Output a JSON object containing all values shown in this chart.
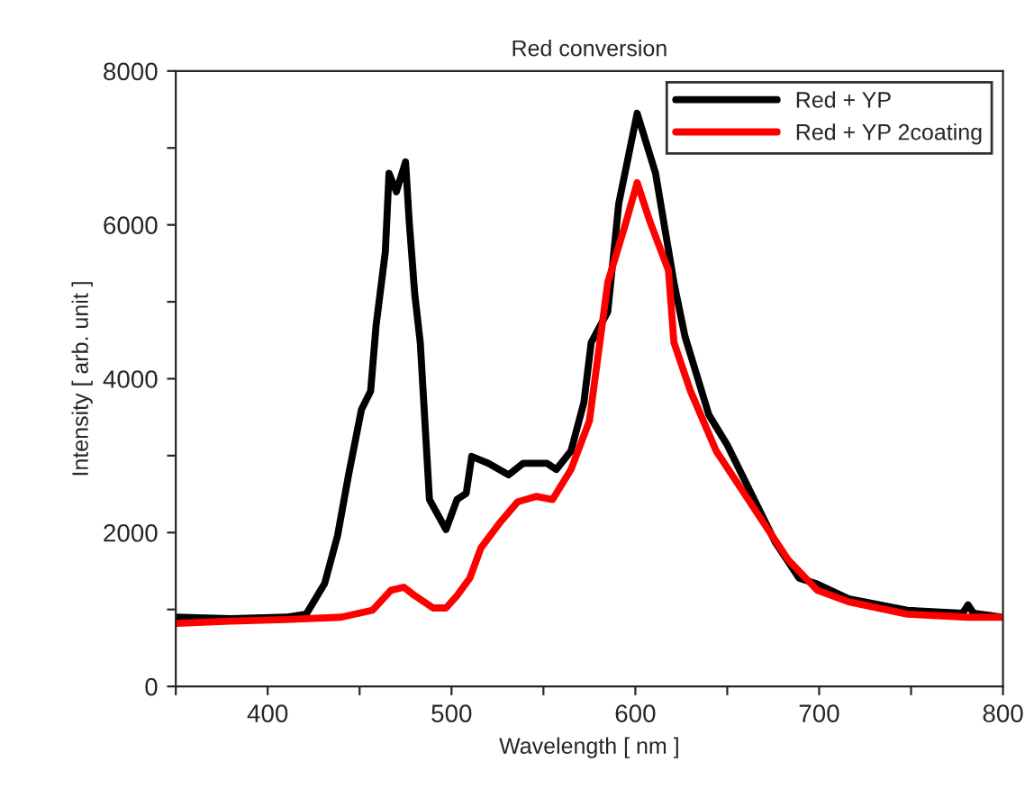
{
  "chart_data": {
    "type": "line",
    "title": "Red conversion",
    "xlabel": "Wavelength [ nm ]",
    "ylabel": "Intensity [ arb. unit ]",
    "xlim": [
      350,
      800
    ],
    "ylim": [
      0,
      8000
    ],
    "xticks": [
      {
        "value": 350,
        "label": null
      },
      400,
      {
        "value": 450,
        "label": null
      },
      500,
      {
        "value": 550,
        "label": null
      },
      600,
      {
        "value": 650,
        "label": null
      },
      700,
      {
        "value": 750,
        "label": null
      },
      800
    ],
    "yticks": [
      0,
      {
        "value": 1000,
        "label": null
      },
      2000,
      {
        "value": 3000,
        "label": null
      },
      4000,
      {
        "value": 5000,
        "label": null
      },
      6000,
      {
        "value": 7000,
        "label": null
      },
      8000
    ],
    "grid": false,
    "legend": "top right",
    "line_style": "solid",
    "marker": "none",
    "series": [
      {
        "name": "Red + YP",
        "color": "#000000",
        "x": [
          350,
          380,
          410,
          421,
          431,
          438,
          444,
          451,
          456,
          459,
          464,
          466,
          470,
          475,
          477,
          480,
          483,
          488,
          497,
          503,
          508,
          511,
          520,
          531,
          539,
          552,
          557,
          565,
          572,
          576,
          585,
          591,
          601,
          611,
          621,
          627,
          640,
          650,
          663,
          676,
          689,
          699,
          716,
          748,
          778,
          781,
          784,
          800
        ],
        "values": [
          900,
          880,
          900,
          940,
          1340,
          1960,
          2750,
          3600,
          3840,
          4700,
          5650,
          6670,
          6430,
          6820,
          6040,
          5100,
          4470,
          2430,
          2040,
          2430,
          2510,
          2990,
          2900,
          2750,
          2900,
          2900,
          2820,
          3060,
          3690,
          4470,
          4870,
          6280,
          7450,
          6670,
          5250,
          4550,
          3530,
          3140,
          2510,
          1880,
          1410,
          1330,
          1140,
          990,
          950,
          1060,
          950,
          900
        ]
      },
      {
        "name": "Red + YP 2coating",
        "color": "#ff0000",
        "x": [
          350,
          380,
          410,
          440,
          457,
          467,
          474,
          480,
          490,
          497,
          503,
          510,
          516,
          526,
          536,
          546,
          555,
          565,
          575,
          585,
          595,
          601,
          608,
          618,
          621,
          630,
          644,
          657,
          670,
          683,
          699,
          716,
          748,
          781,
          800
        ],
        "values": [
          820,
          850,
          870,
          900,
          990,
          1250,
          1290,
          1180,
          1020,
          1020,
          1180,
          1410,
          1800,
          2120,
          2400,
          2470,
          2430,
          2820,
          3450,
          5250,
          6040,
          6550,
          6040,
          5410,
          4470,
          3840,
          3060,
          2590,
          2120,
          1650,
          1250,
          1100,
          940,
          900,
          900
        ]
      }
    ]
  }
}
